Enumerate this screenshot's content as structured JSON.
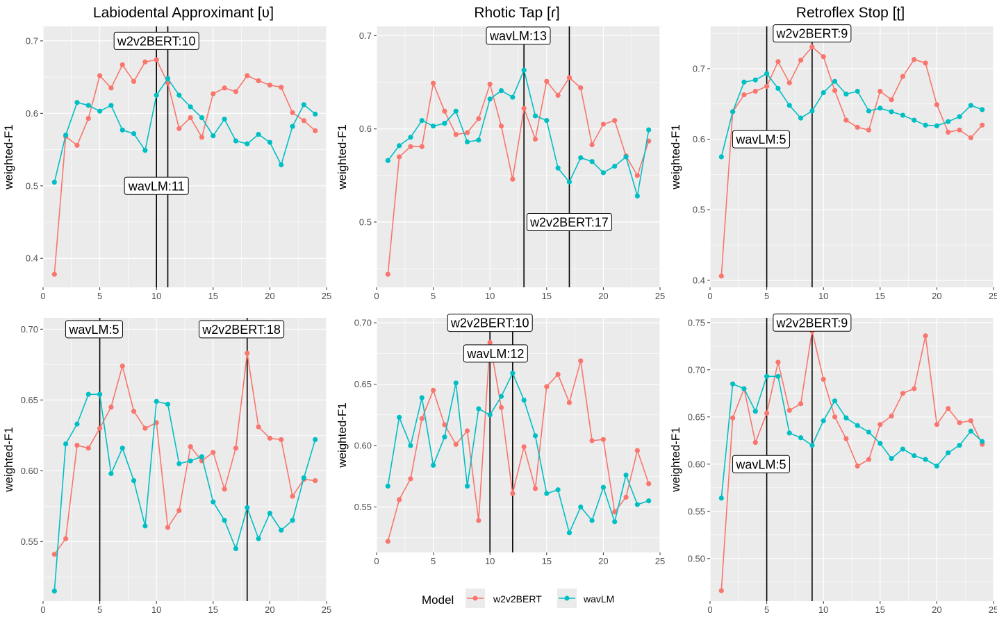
{
  "colors": {
    "w2v2BERT": "#F8766D",
    "wavLM": "#00BFC4",
    "panel_bg": "#EBEBEB",
    "grid": "#FFFFFF",
    "text": "#000000",
    "tick_text": "#4D4D4D"
  },
  "legend": {
    "title": "Model",
    "entries": [
      {
        "key": "w2v2BERT",
        "label": "w2v2BERT"
      },
      {
        "key": "wavLM",
        "label": "wavLM"
      }
    ]
  },
  "chart_data": [
    {
      "type": "line",
      "title": "Labiodental Approximant [ʋ]",
      "ylabel": "weighted-F1",
      "xlim": [
        0,
        25
      ],
      "ylim": [
        0.36,
        0.72
      ],
      "xticks": [
        0,
        5,
        10,
        15,
        20,
        25
      ],
      "yticks": [
        0.4,
        0.5,
        0.6,
        0.7
      ],
      "ytick_labels": [
        "0.4",
        "0.5",
        "0.6",
        "0.7"
      ],
      "x": [
        1,
        2,
        3,
        4,
        5,
        6,
        7,
        8,
        9,
        10,
        11,
        12,
        13,
        14,
        15,
        16,
        17,
        18,
        19,
        20,
        21,
        22,
        23,
        24
      ],
      "series": [
        {
          "name": "w2v2BERT",
          "values": [
            0.378,
            0.568,
            0.556,
            0.593,
            0.652,
            0.635,
            0.667,
            0.644,
            0.671,
            0.674,
            0.642,
            0.579,
            0.594,
            0.567,
            0.627,
            0.635,
            0.63,
            0.652,
            0.645,
            0.639,
            0.636,
            0.601,
            0.59,
            0.576
          ]
        },
        {
          "name": "wavLM",
          "values": [
            0.505,
            0.57,
            0.615,
            0.611,
            0.603,
            0.611,
            0.577,
            0.572,
            0.549,
            0.625,
            0.648,
            0.625,
            0.609,
            0.594,
            0.569,
            0.592,
            0.562,
            0.558,
            0.571,
            0.56,
            0.529,
            0.582,
            0.612,
            0.599
          ]
        }
      ],
      "vlines": [
        {
          "x": 10,
          "label": "w2v2BERT:10",
          "label_x": 10,
          "label_y": 0.7
        },
        {
          "x": 11,
          "label": "wavLM:11",
          "label_x": 10,
          "label_y": 0.5
        }
      ]
    },
    {
      "type": "line",
      "title": "Rhotic Tap [ɾ]",
      "ylabel": "weighted-F1",
      "xlim": [
        0,
        25
      ],
      "ylim": [
        0.43,
        0.71
      ],
      "xticks": [
        0,
        5,
        10,
        15,
        20,
        25
      ],
      "yticks": [
        0.5,
        0.6,
        0.7
      ],
      "ytick_labels": [
        "0.5",
        "0.6",
        "0.7"
      ],
      "x": [
        1,
        2,
        3,
        4,
        5,
        6,
        7,
        8,
        9,
        10,
        11,
        12,
        13,
        14,
        15,
        16,
        17,
        18,
        19,
        20,
        21,
        22,
        23,
        24
      ],
      "series": [
        {
          "name": "w2v2BERT",
          "values": [
            0.444,
            0.57,
            0.581,
            0.581,
            0.649,
            0.619,
            0.594,
            0.596,
            0.611,
            0.648,
            0.603,
            0.546,
            0.622,
            0.589,
            0.651,
            0.636,
            0.655,
            0.644,
            0.583,
            0.605,
            0.609,
            0.571,
            0.55,
            0.587
          ]
        },
        {
          "name": "wavLM",
          "values": [
            0.566,
            0.582,
            0.591,
            0.609,
            0.603,
            0.606,
            0.619,
            0.586,
            0.588,
            0.632,
            0.641,
            0.634,
            0.663,
            0.614,
            0.609,
            0.558,
            0.543,
            0.569,
            0.565,
            0.553,
            0.56,
            0.57,
            0.528,
            0.599
          ]
        }
      ],
      "vlines": [
        {
          "x": 13,
          "label": "wavLM:13",
          "label_x": 12.5,
          "label_y": 0.7
        },
        {
          "x": 17,
          "label": "w2v2BERT:17",
          "label_x": 17,
          "label_y": 0.5
        }
      ]
    },
    {
      "type": "line",
      "title": "Retroflex Stop [ʈ]",
      "ylabel": "weighted-F1",
      "xlim": [
        0,
        25
      ],
      "ylim": [
        0.39,
        0.76
      ],
      "xticks": [
        0,
        5,
        10,
        15,
        20,
        25
      ],
      "yticks": [
        0.4,
        0.5,
        0.6,
        0.7
      ],
      "ytick_labels": [
        "0.4",
        "0.5",
        "0.6",
        "0.7"
      ],
      "x": [
        1,
        2,
        3,
        4,
        5,
        6,
        7,
        8,
        9,
        10,
        11,
        12,
        13,
        14,
        15,
        16,
        17,
        18,
        19,
        20,
        21,
        22,
        23,
        24
      ],
      "series": [
        {
          "name": "w2v2BERT",
          "values": [
            0.406,
            0.639,
            0.663,
            0.668,
            0.675,
            0.71,
            0.68,
            0.712,
            0.731,
            0.717,
            0.669,
            0.627,
            0.617,
            0.613,
            0.668,
            0.656,
            0.689,
            0.713,
            0.708,
            0.649,
            0.61,
            0.613,
            0.602,
            0.62
          ]
        },
        {
          "name": "wavLM",
          "values": [
            0.575,
            0.639,
            0.681,
            0.684,
            0.693,
            0.672,
            0.648,
            0.63,
            0.64,
            0.666,
            0.682,
            0.664,
            0.668,
            0.64,
            0.644,
            0.639,
            0.634,
            0.627,
            0.62,
            0.619,
            0.625,
            0.632,
            0.648,
            0.642
          ]
        }
      ],
      "vlines": [
        {
          "x": 5,
          "label": "wavLM:5",
          "label_x": 4.5,
          "label_y": 0.6
        },
        {
          "x": 9,
          "label": "w2v2BERT:9",
          "label_x": 9,
          "label_y": 0.75
        }
      ]
    },
    {
      "type": "line",
      "title": "",
      "ylabel": "weighted-F1",
      "xlim": [
        0,
        25
      ],
      "ylim": [
        0.508,
        0.708
      ],
      "xticks": [
        0,
        5,
        10,
        15,
        20,
        25
      ],
      "yticks": [
        0.55,
        0.6,
        0.65,
        0.7
      ],
      "ytick_labels": [
        "0.55",
        "0.60",
        "0.65",
        "0.70"
      ],
      "x": [
        1,
        2,
        3,
        4,
        5,
        6,
        7,
        8,
        9,
        10,
        11,
        12,
        13,
        14,
        15,
        16,
        17,
        18,
        19,
        20,
        21,
        22,
        23,
        24
      ],
      "series": [
        {
          "name": "w2v2BERT",
          "values": [
            0.541,
            0.552,
            0.618,
            0.616,
            0.63,
            0.645,
            0.674,
            0.642,
            0.63,
            0.634,
            0.56,
            0.572,
            0.617,
            0.607,
            0.613,
            0.587,
            0.616,
            0.683,
            0.631,
            0.623,
            0.622,
            0.582,
            0.594,
            0.593
          ]
        },
        {
          "name": "wavLM",
          "values": [
            0.515,
            0.619,
            0.633,
            0.654,
            0.654,
            0.598,
            0.616,
            0.593,
            0.561,
            0.649,
            0.647,
            0.605,
            0.607,
            0.61,
            0.578,
            0.565,
            0.545,
            0.574,
            0.552,
            0.57,
            0.558,
            0.565,
            0.595,
            0.622
          ]
        }
      ],
      "vlines": [
        {
          "x": 5,
          "label": "wavLM:5",
          "label_x": 4.5,
          "label_y": 0.7
        },
        {
          "x": 18,
          "label": "w2v2BERT:18",
          "label_x": 17.5,
          "label_y": 0.7
        }
      ]
    },
    {
      "type": "line",
      "title": "",
      "ylabel": "weighted-F1",
      "xlim": [
        0,
        25
      ],
      "ylim": [
        0.513,
        0.704
      ],
      "xticks": [
        0,
        5,
        10,
        15,
        20,
        25
      ],
      "yticks": [
        0.55,
        0.6,
        0.65,
        0.7
      ],
      "ytick_labels": [
        "0.55",
        "0.60",
        "0.65",
        "0.70"
      ],
      "x": [
        1,
        2,
        3,
        4,
        5,
        6,
        7,
        8,
        9,
        10,
        11,
        12,
        13,
        14,
        15,
        16,
        17,
        18,
        19,
        20,
        21,
        22,
        23,
        24
      ],
      "series": [
        {
          "name": "w2v2BERT",
          "values": [
            0.522,
            0.556,
            0.573,
            0.622,
            0.645,
            0.617,
            0.601,
            0.612,
            0.539,
            0.684,
            0.631,
            0.561,
            0.599,
            0.565,
            0.648,
            0.658,
            0.635,
            0.669,
            0.604,
            0.605,
            0.546,
            0.558,
            0.596,
            0.569
          ]
        },
        {
          "name": "wavLM",
          "values": [
            0.567,
            0.623,
            0.6,
            0.639,
            0.584,
            0.607,
            0.651,
            0.567,
            0.63,
            0.625,
            0.64,
            0.659,
            0.637,
            0.608,
            0.561,
            0.564,
            0.529,
            0.55,
            0.539,
            0.566,
            0.538,
            0.576,
            0.552,
            0.555
          ]
        }
      ],
      "vlines": [
        {
          "x": 10,
          "label": "w2v2BERT:10",
          "label_x": 10,
          "label_y": 0.7
        },
        {
          "x": 12,
          "label": "wavLM:12",
          "label_x": 10.5,
          "label_y": 0.675
        }
      ]
    },
    {
      "type": "line",
      "title": "",
      "ylabel": "weighted-F1",
      "xlim": [
        0,
        25
      ],
      "ylim": [
        0.455,
        0.755
      ],
      "xticks": [
        0,
        5,
        10,
        15,
        20,
        25
      ],
      "yticks": [
        0.5,
        0.55,
        0.6,
        0.65,
        0.7,
        0.75
      ],
      "ytick_labels": [
        "0.50",
        "0.55",
        "0.60",
        "0.65",
        "0.70",
        "0.75"
      ],
      "x": [
        1,
        2,
        3,
        4,
        5,
        6,
        7,
        8,
        9,
        10,
        11,
        12,
        13,
        14,
        15,
        16,
        17,
        18,
        19,
        20,
        21,
        22,
        23,
        24
      ],
      "series": [
        {
          "name": "w2v2BERT",
          "values": [
            0.466,
            0.649,
            0.68,
            0.623,
            0.654,
            0.708,
            0.657,
            0.664,
            0.741,
            0.69,
            0.65,
            0.627,
            0.598,
            0.605,
            0.642,
            0.651,
            0.675,
            0.68,
            0.736,
            0.642,
            0.659,
            0.644,
            0.646,
            0.621
          ]
        },
        {
          "name": "wavLM",
          "values": [
            0.564,
            0.685,
            0.68,
            0.656,
            0.693,
            0.693,
            0.633,
            0.628,
            0.62,
            0.646,
            0.667,
            0.649,
            0.641,
            0.634,
            0.622,
            0.606,
            0.616,
            0.609,
            0.605,
            0.598,
            0.612,
            0.62,
            0.635,
            0.624
          ]
        }
      ],
      "vlines": [
        {
          "x": 5,
          "label": "wavLM:5",
          "label_x": 4.5,
          "label_y": 0.6
        },
        {
          "x": 9,
          "label": "w2v2BERT:9",
          "label_x": 9,
          "label_y": 0.75
        }
      ]
    }
  ]
}
